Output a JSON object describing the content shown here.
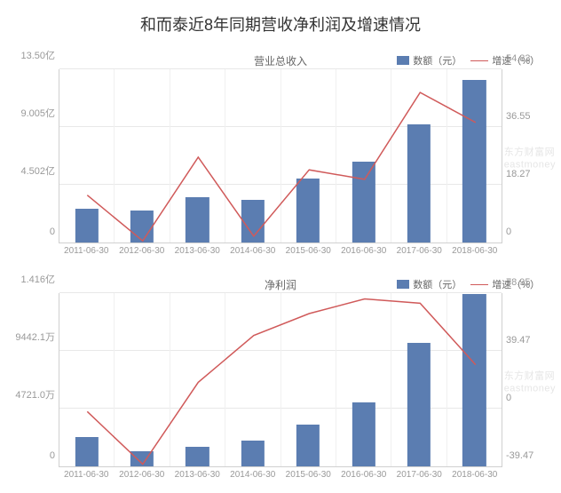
{
  "title": "和而泰近8年同期营收净利润及增速情况",
  "watermark": {
    "line1": "东方财富网",
    "line2": "eastmoney"
  },
  "categories": [
    "2011-06-30",
    "2012-06-30",
    "2013-06-30",
    "2014-06-30",
    "2015-06-30",
    "2016-06-30",
    "2017-06-30",
    "2018-06-30"
  ],
  "charts": [
    {
      "type": "bar+line",
      "subtitle": "营业总收入",
      "legend_amount": "数额（元）",
      "legend_growth": "增速（%）",
      "bar_color": "#5b7db1",
      "line_color": "#d05a5a",
      "background_color": "#ffffff",
      "grid_color": "#e8e8e8",
      "bar_width_ratio": 0.42,
      "title_fontsize": 12,
      "y_left": {
        "min": 0,
        "max": 13.5,
        "ticks": [
          0,
          4.502,
          9.005,
          13.5
        ],
        "labels": [
          "0",
          "4.502亿",
          "9.005亿",
          "13.50亿"
        ]
      },
      "y_right": {
        "min": 0,
        "max": 54.83,
        "ticks": [
          0,
          18.27,
          36.55,
          54.83
        ],
        "labels": [
          "0",
          "18.27",
          "36.55",
          "54.83"
        ]
      },
      "bars": [
        2.6,
        2.5,
        3.5,
        3.3,
        5.0,
        6.3,
        9.2,
        12.7
      ],
      "line": [
        15.0,
        0.5,
        27.0,
        2.0,
        23.0,
        20.0,
        47.5,
        38.0
      ]
    },
    {
      "type": "bar+line",
      "subtitle": "净利润",
      "legend_amount": "数额（元）",
      "legend_growth": "增速（%）",
      "bar_color": "#5b7db1",
      "line_color": "#d05a5a",
      "background_color": "#ffffff",
      "grid_color": "#e8e8e8",
      "bar_width_ratio": 0.42,
      "title_fontsize": 12,
      "y_left": {
        "min": 0,
        "max": 14163.0,
        "ticks": [
          0,
          4721.0,
          9442.1,
          14163.0
        ],
        "labels": [
          "0",
          "4721.0万",
          "9442.1万",
          "1.416亿"
        ]
      },
      "y_right": {
        "min": -39.47,
        "max": 78.95,
        "ticks": [
          -39.47,
          0,
          39.47,
          78.95
        ],
        "labels": [
          "-39.47",
          "0",
          "39.47",
          "78.95"
        ]
      },
      "bars": [
        2400,
        1200,
        1600,
        2100,
        3400,
        5200,
        10100,
        14100
      ],
      "line": [
        -2.0,
        -38.0,
        18.0,
        50.0,
        65.0,
        75.0,
        72.0,
        30.0
      ]
    }
  ]
}
